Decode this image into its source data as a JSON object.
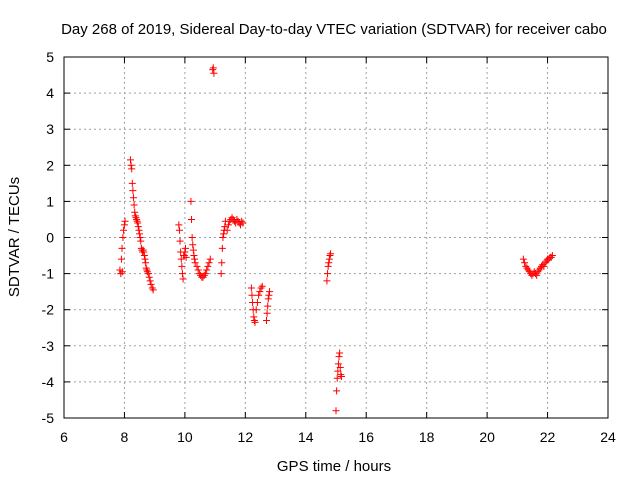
{
  "chart_data": {
    "type": "scatter",
    "title": "Day 268 of 2019, Sidereal Day-to-day VTEC variation (SDTVAR) for receiver cabo",
    "xlabel": "GPS time / hours",
    "ylabel": "SDTVAR / TECUs",
    "xlim": [
      6,
      24
    ],
    "ylim": [
      -5,
      5
    ],
    "xticks": [
      6,
      8,
      10,
      12,
      14,
      16,
      18,
      20,
      22,
      24
    ],
    "yticks": [
      -5,
      -4,
      -3,
      -2,
      -1,
      0,
      1,
      2,
      3,
      4,
      5
    ],
    "grid": true,
    "legend": "none",
    "marker": "plus",
    "color": "#ff0000",
    "points": [
      [
        7.85,
        -0.9
      ],
      [
        7.88,
        -1.0
      ],
      [
        7.9,
        -0.6
      ],
      [
        7.92,
        -0.3
      ],
      [
        7.95,
        0.0
      ],
      [
        7.97,
        0.2
      ],
      [
        8.0,
        0.35
      ],
      [
        8.02,
        0.45
      ],
      [
        7.93,
        -0.95
      ],
      [
        8.2,
        2.15
      ],
      [
        8.22,
        2.0
      ],
      [
        8.24,
        1.9
      ],
      [
        8.26,
        1.5
      ],
      [
        8.28,
        1.3
      ],
      [
        8.3,
        1.1
      ],
      [
        8.32,
        0.9
      ],
      [
        8.34,
        0.7
      ],
      [
        8.36,
        0.6
      ],
      [
        8.38,
        0.55
      ],
      [
        8.4,
        0.5
      ],
      [
        8.42,
        0.45
      ],
      [
        8.44,
        0.4
      ],
      [
        8.46,
        0.3
      ],
      [
        8.48,
        0.2
      ],
      [
        8.5,
        0.1
      ],
      [
        8.52,
        0.0
      ],
      [
        8.54,
        -0.1
      ],
      [
        8.56,
        -0.3
      ],
      [
        8.58,
        -0.35
      ],
      [
        8.6,
        -0.4
      ],
      [
        8.62,
        -0.35
      ],
      [
        8.64,
        -0.4
      ],
      [
        8.66,
        -0.5
      ],
      [
        8.68,
        -0.6
      ],
      [
        8.7,
        -0.7
      ],
      [
        8.72,
        -0.85
      ],
      [
        8.74,
        -0.9
      ],
      [
        8.76,
        -0.95
      ],
      [
        8.8,
        -1.0
      ],
      [
        8.82,
        -1.1
      ],
      [
        8.85,
        -1.2
      ],
      [
        8.88,
        -1.3
      ],
      [
        8.92,
        -1.4
      ],
      [
        8.95,
        -1.45
      ],
      [
        9.8,
        0.35
      ],
      [
        9.82,
        0.2
      ],
      [
        9.84,
        -0.1
      ],
      [
        9.86,
        -0.4
      ],
      [
        9.88,
        -0.6
      ],
      [
        9.9,
        -0.8
      ],
      [
        9.92,
        -1.0
      ],
      [
        9.94,
        -1.15
      ],
      [
        9.96,
        -0.5
      ],
      [
        9.98,
        -0.5
      ],
      [
        10.0,
        -0.4
      ],
      [
        10.02,
        -0.3
      ],
      [
        10.04,
        -0.55
      ],
      [
        10.2,
        1.0
      ],
      [
        10.22,
        0.5
      ],
      [
        10.24,
        0.0
      ],
      [
        10.26,
        -0.2
      ],
      [
        10.28,
        -0.35
      ],
      [
        10.3,
        -0.5
      ],
      [
        10.32,
        -0.6
      ],
      [
        10.34,
        -0.7
      ],
      [
        10.4,
        -0.8
      ],
      [
        10.44,
        -0.9
      ],
      [
        10.48,
        -1.0
      ],
      [
        10.52,
        -1.05
      ],
      [
        10.56,
        -1.1
      ],
      [
        10.6,
        -1.1
      ],
      [
        10.64,
        -1.05
      ],
      [
        10.68,
        -1.0
      ],
      [
        10.72,
        -0.9
      ],
      [
        10.76,
        -0.8
      ],
      [
        10.8,
        -0.7
      ],
      [
        10.84,
        -0.6
      ],
      [
        10.92,
        4.65
      ],
      [
        10.96,
        4.55
      ],
      [
        10.94,
        4.7
      ],
      [
        11.2,
        -1.0
      ],
      [
        11.22,
        -0.7
      ],
      [
        11.24,
        -0.3
      ],
      [
        11.26,
        0.0
      ],
      [
        11.28,
        0.1
      ],
      [
        11.3,
        0.2
      ],
      [
        11.32,
        0.3
      ],
      [
        11.34,
        0.45
      ],
      [
        11.4,
        0.2
      ],
      [
        11.44,
        0.35
      ],
      [
        11.48,
        0.45
      ],
      [
        11.52,
        0.5
      ],
      [
        11.56,
        0.55
      ],
      [
        11.6,
        0.5
      ],
      [
        11.64,
        0.45
      ],
      [
        11.68,
        0.4
      ],
      [
        11.72,
        0.5
      ],
      [
        11.76,
        0.45
      ],
      [
        11.8,
        0.4
      ],
      [
        11.84,
        0.35
      ],
      [
        11.88,
        0.45
      ],
      [
        11.92,
        0.4
      ],
      [
        12.2,
        -1.4
      ],
      [
        12.22,
        -1.6
      ],
      [
        12.24,
        -1.8
      ],
      [
        12.26,
        -2.0
      ],
      [
        12.28,
        -2.2
      ],
      [
        12.3,
        -2.3
      ],
      [
        12.32,
        -2.35
      ],
      [
        12.36,
        -2.0
      ],
      [
        12.4,
        -1.8
      ],
      [
        12.44,
        -1.6
      ],
      [
        12.48,
        -1.5
      ],
      [
        12.52,
        -1.4
      ],
      [
        12.56,
        -1.35
      ],
      [
        12.7,
        -2.3
      ],
      [
        12.72,
        -2.1
      ],
      [
        12.74,
        -1.9
      ],
      [
        12.76,
        -1.7
      ],
      [
        12.78,
        -1.6
      ],
      [
        12.8,
        -1.5
      ],
      [
        14.7,
        -1.2
      ],
      [
        14.72,
        -1.0
      ],
      [
        14.74,
        -0.8
      ],
      [
        14.76,
        -0.7
      ],
      [
        14.78,
        -0.6
      ],
      [
        14.8,
        -0.5
      ],
      [
        14.82,
        -0.45
      ],
      [
        15.0,
        -4.8
      ],
      [
        15.02,
        -4.25
      ],
      [
        15.04,
        -3.9
      ],
      [
        15.06,
        -3.7
      ],
      [
        15.08,
        -3.5
      ],
      [
        15.1,
        -3.3
      ],
      [
        15.12,
        -3.2
      ],
      [
        15.14,
        -3.6
      ],
      [
        15.16,
        -3.8
      ],
      [
        15.18,
        -3.85
      ],
      [
        21.2,
        -0.6
      ],
      [
        21.24,
        -0.7
      ],
      [
        21.28,
        -0.8
      ],
      [
        21.32,
        -0.85
      ],
      [
        21.36,
        -0.9
      ],
      [
        21.4,
        -0.95
      ],
      [
        21.44,
        -1.0
      ],
      [
        21.48,
        -1.05
      ],
      [
        21.52,
        -1.0
      ],
      [
        21.56,
        -0.95
      ],
      [
        21.6,
        -1.0
      ],
      [
        21.64,
        -1.05
      ],
      [
        21.68,
        -0.95
      ],
      [
        21.72,
        -0.9
      ],
      [
        21.76,
        -0.85
      ],
      [
        21.8,
        -0.8
      ],
      [
        21.84,
        -0.75
      ],
      [
        21.88,
        -0.8
      ],
      [
        21.92,
        -0.7
      ],
      [
        21.96,
        -0.65
      ],
      [
        22.0,
        -0.6
      ],
      [
        22.04,
        -0.6
      ],
      [
        22.08,
        -0.55
      ],
      [
        22.12,
        -0.55
      ],
      [
        22.16,
        -0.5
      ]
    ]
  }
}
